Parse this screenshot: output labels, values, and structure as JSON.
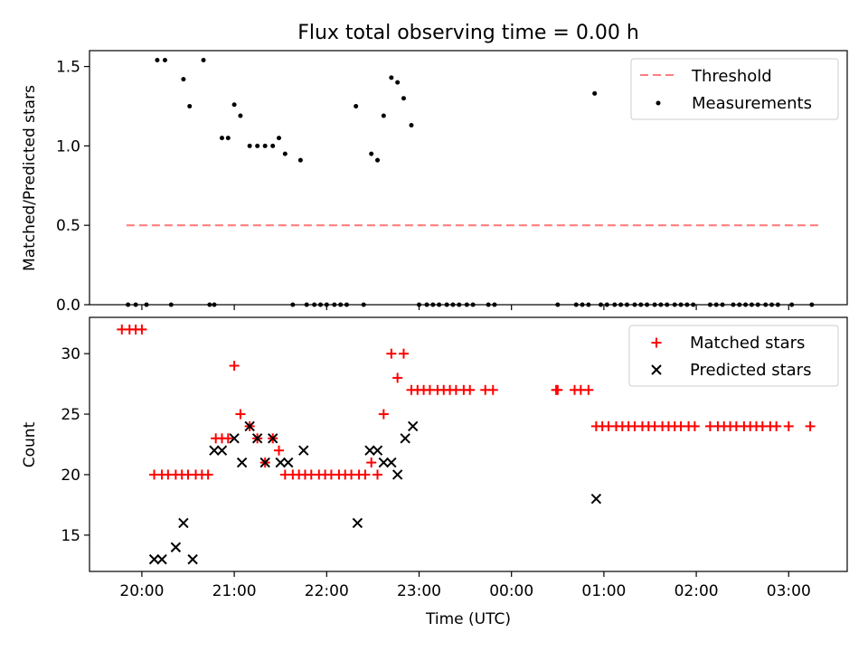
{
  "figure": {
    "title": "Flux total observing time = 0.00 h",
    "xlabel": "Time (UTC)"
  },
  "chart_data": [
    {
      "type": "scatter",
      "ylabel": "Matched/Predicted stars",
      "ylim": [
        0,
        1.6
      ],
      "yticks": [
        "0.0",
        "0.5",
        "1.0",
        "1.5"
      ],
      "xlim": [
        "19:26",
        "03:38"
      ],
      "xticks": [
        "20:00",
        "21:00",
        "22:00",
        "23:00",
        "00:00",
        "01:00",
        "02:00",
        "03:00"
      ],
      "show_xtick_labels": false,
      "legend_position": "upper right",
      "threshold": {
        "name": "Threshold",
        "color": "#ff7f7f",
        "style": "dashed",
        "y": 0.5,
        "x_range": [
          "19:50",
          "03:22"
        ]
      },
      "series": [
        {
          "name": "Measurements",
          "color": "#000000",
          "marker": "dot",
          "points": [
            [
              "19:51",
              0
            ],
            [
              "19:56",
              0
            ],
            [
              "20:03",
              0
            ],
            [
              "20:10",
              1.54
            ],
            [
              "20:15",
              1.54
            ],
            [
              "20:19",
              0
            ],
            [
              "20:27",
              1.42
            ],
            [
              "20:31",
              1.25
            ],
            [
              "20:40",
              1.54
            ],
            [
              "20:44",
              0
            ],
            [
              "20:47",
              0
            ],
            [
              "20:52",
              1.05
            ],
            [
              "20:56",
              1.05
            ],
            [
              "21:00",
              1.26
            ],
            [
              "21:04",
              1.19
            ],
            [
              "21:10",
              1.0
            ],
            [
              "21:15",
              1.0
            ],
            [
              "21:20",
              1.0
            ],
            [
              "21:25",
              1.0
            ],
            [
              "21:29",
              1.05
            ],
            [
              "21:33",
              0.95
            ],
            [
              "21:38",
              0
            ],
            [
              "21:43",
              0.91
            ],
            [
              "21:47",
              0
            ],
            [
              "21:52",
              0
            ],
            [
              "21:56",
              0
            ],
            [
              "22:00",
              0
            ],
            [
              "22:05",
              0
            ],
            [
              "22:09",
              0
            ],
            [
              "22:13",
              0
            ],
            [
              "22:19",
              1.25
            ],
            [
              "22:24",
              0
            ],
            [
              "22:29",
              0.95
            ],
            [
              "22:33",
              0.91
            ],
            [
              "22:37",
              1.19
            ],
            [
              "22:42",
              1.43
            ],
            [
              "22:46",
              1.4
            ],
            [
              "22:50",
              1.3
            ],
            [
              "22:55",
              1.13
            ],
            [
              "23:00",
              0
            ],
            [
              "23:05",
              0
            ],
            [
              "23:09",
              0
            ],
            [
              "23:13",
              0
            ],
            [
              "23:18",
              0
            ],
            [
              "23:22",
              0
            ],
            [
              "23:26",
              0
            ],
            [
              "23:31",
              0
            ],
            [
              "23:35",
              0
            ],
            [
              "23:45",
              0
            ],
            [
              "23:49",
              0
            ],
            [
              "00:30",
              0
            ],
            [
              "00:42",
              0
            ],
            [
              "00:46",
              0
            ],
            [
              "00:50",
              0
            ],
            [
              "00:54",
              1.33
            ],
            [
              "00:58",
              0
            ],
            [
              "01:02",
              0
            ],
            [
              "01:07",
              0
            ],
            [
              "01:11",
              0
            ],
            [
              "01:15",
              0
            ],
            [
              "01:20",
              0
            ],
            [
              "01:24",
              0
            ],
            [
              "01:28",
              0
            ],
            [
              "01:33",
              0
            ],
            [
              "01:37",
              0
            ],
            [
              "01:41",
              0
            ],
            [
              "01:46",
              0
            ],
            [
              "01:50",
              0
            ],
            [
              "01:54",
              0
            ],
            [
              "01:58",
              0
            ],
            [
              "02:09",
              0
            ],
            [
              "02:13",
              0
            ],
            [
              "02:17",
              0
            ],
            [
              "02:24",
              0
            ],
            [
              "02:28",
              0
            ],
            [
              "02:32",
              0
            ],
            [
              "02:36",
              0
            ],
            [
              "02:40",
              0
            ],
            [
              "02:45",
              0
            ],
            [
              "02:49",
              0
            ],
            [
              "02:53",
              0
            ],
            [
              "03:02",
              0
            ],
            [
              "03:15",
              0
            ]
          ]
        }
      ]
    },
    {
      "type": "scatter",
      "ylabel": "Count",
      "ylim": [
        12,
        33
      ],
      "yticks": [
        "15",
        "20",
        "25",
        "30"
      ],
      "xlim": [
        "19:26",
        "03:38"
      ],
      "xticks": [
        "20:00",
        "21:00",
        "22:00",
        "23:00",
        "00:00",
        "01:00",
        "02:00",
        "03:00"
      ],
      "show_xtick_labels": true,
      "legend_position": "upper right",
      "series": [
        {
          "name": "Matched stars",
          "color": "#ff0000",
          "marker": "plus",
          "points": [
            [
              "19:47",
              32
            ],
            [
              "19:52",
              32
            ],
            [
              "19:56",
              32
            ],
            [
              "20:00",
              32
            ],
            [
              "20:08",
              20
            ],
            [
              "20:13",
              20
            ],
            [
              "20:17",
              20
            ],
            [
              "20:22",
              20
            ],
            [
              "20:26",
              20
            ],
            [
              "20:30",
              20
            ],
            [
              "20:35",
              20
            ],
            [
              "20:39",
              20
            ],
            [
              "20:43",
              20
            ],
            [
              "20:48",
              23
            ],
            [
              "20:52",
              23
            ],
            [
              "20:56",
              23
            ],
            [
              "21:00",
              29
            ],
            [
              "21:04",
              25
            ],
            [
              "21:10",
              24
            ],
            [
              "21:15",
              23
            ],
            [
              "21:20",
              21
            ],
            [
              "21:25",
              23
            ],
            [
              "21:29",
              22
            ],
            [
              "21:33",
              20
            ],
            [
              "21:38",
              20
            ],
            [
              "21:42",
              20
            ],
            [
              "21:46",
              20
            ],
            [
              "21:50",
              20
            ],
            [
              "21:55",
              20
            ],
            [
              "21:59",
              20
            ],
            [
              "22:03",
              20
            ],
            [
              "22:08",
              20
            ],
            [
              "22:12",
              20
            ],
            [
              "22:16",
              20
            ],
            [
              "22:21",
              20
            ],
            [
              "22:25",
              20
            ],
            [
              "22:29",
              21
            ],
            [
              "22:33",
              20
            ],
            [
              "22:37",
              25
            ],
            [
              "22:42",
              30
            ],
            [
              "22:46",
              28
            ],
            [
              "22:50",
              30
            ],
            [
              "22:55",
              27
            ],
            [
              "22:59",
              27
            ],
            [
              "23:03",
              27
            ],
            [
              "23:07",
              27
            ],
            [
              "23:12",
              27
            ],
            [
              "23:16",
              27
            ],
            [
              "23:20",
              27
            ],
            [
              "23:24",
              27
            ],
            [
              "23:29",
              27
            ],
            [
              "23:33",
              27
            ],
            [
              "23:43",
              27
            ],
            [
              "23:48",
              27
            ],
            [
              "00:29",
              27
            ],
            [
              "00:30",
              27
            ],
            [
              "00:41",
              27
            ],
            [
              "00:45",
              27
            ],
            [
              "00:50",
              27
            ],
            [
              "00:55",
              24
            ],
            [
              "00:59",
              24
            ],
            [
              "01:03",
              24
            ],
            [
              "01:08",
              24
            ],
            [
              "01:12",
              24
            ],
            [
              "01:16",
              24
            ],
            [
              "01:20",
              24
            ],
            [
              "01:25",
              24
            ],
            [
              "01:29",
              24
            ],
            [
              "01:33",
              24
            ],
            [
              "01:38",
              24
            ],
            [
              "01:42",
              24
            ],
            [
              "01:46",
              24
            ],
            [
              "01:50",
              24
            ],
            [
              "01:55",
              24
            ],
            [
              "01:59",
              24
            ],
            [
              "02:09",
              24
            ],
            [
              "02:14",
              24
            ],
            [
              "02:18",
              24
            ],
            [
              "02:22",
              24
            ],
            [
              "02:26",
              24
            ],
            [
              "02:31",
              24
            ],
            [
              "02:35",
              24
            ],
            [
              "02:39",
              24
            ],
            [
              "02:43",
              24
            ],
            [
              "02:48",
              24
            ],
            [
              "02:52",
              24
            ],
            [
              "03:00",
              24
            ],
            [
              "03:14",
              24
            ]
          ]
        },
        {
          "name": "Predicted stars",
          "color": "#000000",
          "marker": "x",
          "points": [
            [
              "20:08",
              13
            ],
            [
              "20:13",
              13
            ],
            [
              "20:22",
              14
            ],
            [
              "20:27",
              16
            ],
            [
              "20:33",
              13
            ],
            [
              "20:47",
              22
            ],
            [
              "20:52",
              22
            ],
            [
              "21:00",
              23
            ],
            [
              "21:05",
              21
            ],
            [
              "21:10",
              24
            ],
            [
              "21:15",
              23
            ],
            [
              "21:20",
              21
            ],
            [
              "21:25",
              23
            ],
            [
              "21:30",
              21
            ],
            [
              "21:35",
              21
            ],
            [
              "21:45",
              22
            ],
            [
              "22:20",
              16
            ],
            [
              "22:28",
              22
            ],
            [
              "22:33",
              22
            ],
            [
              "22:37",
              21
            ],
            [
              "22:42",
              21
            ],
            [
              "22:46",
              20
            ],
            [
              "22:51",
              23
            ],
            [
              "22:56",
              24
            ],
            [
              "00:55",
              18
            ]
          ]
        }
      ]
    }
  ]
}
